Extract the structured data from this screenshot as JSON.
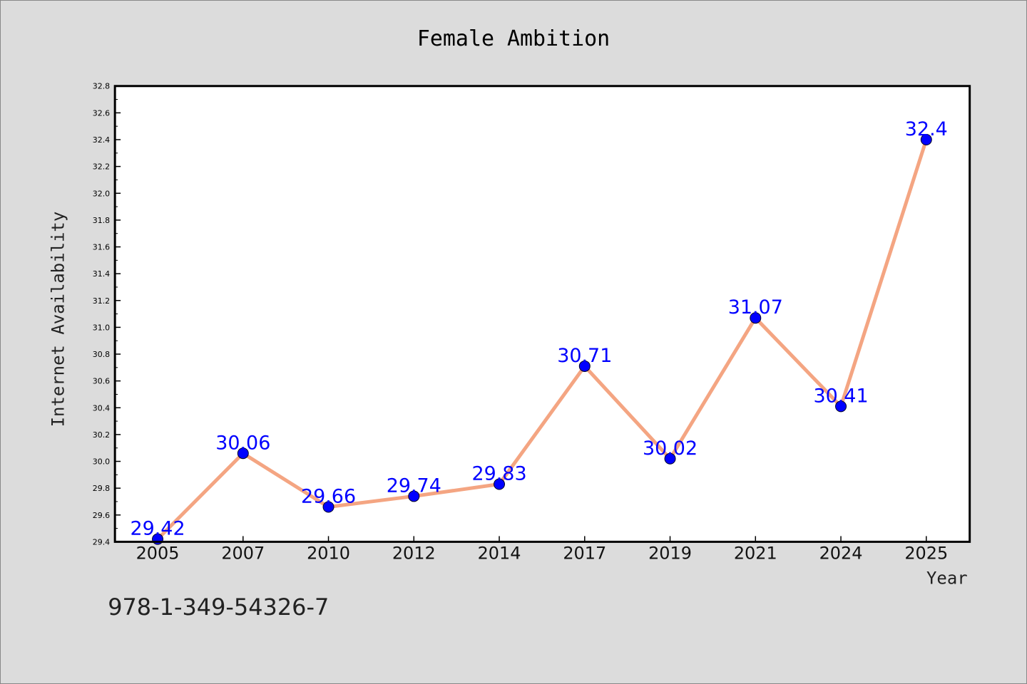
{
  "chart_data": {
    "type": "line",
    "title": "Female Ambition",
    "xlabel": "Year",
    "ylabel": "Internet Availability",
    "categories": [
      "2005",
      "2007",
      "2010",
      "2012",
      "2014",
      "2017",
      "2019",
      "2021",
      "2024",
      "2025"
    ],
    "values": [
      29.42,
      30.06,
      29.66,
      29.74,
      29.83,
      30.71,
      30.02,
      31.07,
      30.41,
      32.4
    ],
    "data_labels": [
      "29.42",
      "30.06",
      "29.66",
      "29.74",
      "29.83",
      "30.71",
      "30.02",
      "31.07",
      "30.41",
      "32.4"
    ],
    "ylim": [
      29.4,
      32.8
    ],
    "yticks": [
      "29.4",
      "29.6",
      "29.8",
      "30.0",
      "30.2",
      "30.4",
      "30.6",
      "30.8",
      "31.0",
      "31.2",
      "31.4",
      "31.6",
      "31.8",
      "32.0",
      "32.2",
      "32.4",
      "32.6",
      "32.8"
    ],
    "grid": false,
    "legend": "none",
    "colors": {
      "line": "#f4a582",
      "marker": "#0000ff",
      "label": "#0000ff",
      "background": "#dcdcdc",
      "plot_background": "#ffffff"
    }
  },
  "footer_text": "978-1-349-54326-7"
}
